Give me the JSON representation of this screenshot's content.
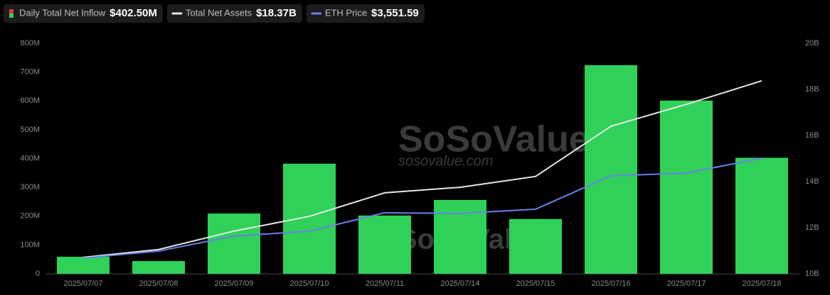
{
  "chart_data": {
    "type": "bar",
    "categories": [
      "2025/07/07",
      "2025/07/08",
      "2025/07/09",
      "2025/07/10",
      "2025/07/11",
      "2025/07/14",
      "2025/07/15",
      "2025/07/16",
      "2025/07/17",
      "2025/07/18"
    ],
    "series": [
      {
        "name": "Daily Total Net Inflow",
        "legend_value": "$402.50M",
        "type": "bar",
        "color": "#2fd158",
        "values": [
          59,
          44,
          209,
          382,
          202,
          256,
          190,
          724,
          601,
          402.5
        ]
      },
      {
        "name": "Total Net Assets",
        "legend_value": "$18.37B",
        "type": "line",
        "axis": "y2",
        "color": "#e6e6e6",
        "values": [
          10.71,
          11.05,
          11.85,
          12.49,
          13.51,
          13.75,
          14.22,
          16.4,
          17.35,
          18.37
        ]
      },
      {
        "name": "ETH Price",
        "legend_value": "$3,551.59",
        "type": "line",
        "axis": "y3",
        "color": "#6b80e6",
        "values": [
          2556,
          2626,
          2775,
          2825,
          3009,
          3002,
          3044,
          3377,
          3405,
          3551.59
        ]
      }
    ],
    "ylim": [
      0,
      800
    ],
    "yticks": [
      0,
      {
        "value": 100,
        "label": "100M"
      },
      {
        "value": 200,
        "label": "200M"
      },
      {
        "value": 300,
        "label": "300M"
      },
      {
        "value": 400,
        "label": "400M"
      },
      {
        "value": 500,
        "label": "500M"
      },
      {
        "value": 600,
        "label": "600M"
      },
      {
        "value": 700,
        "label": "700M"
      },
      {
        "value": 800,
        "label": "800M"
      }
    ],
    "y2lim": [
      10,
      20
    ],
    "y2ticks": [
      {
        "value": 10,
        "label": "10B"
      },
      {
        "value": 12,
        "label": "12B"
      },
      {
        "value": 14,
        "label": "14B"
      },
      {
        "value": 16,
        "label": "16B"
      },
      {
        "value": 18,
        "label": "18B"
      },
      {
        "value": 20,
        "label": "20B"
      }
    ],
    "y3lim": [
      2400,
      4700
    ],
    "grid": false,
    "watermark": "SoSoValue",
    "watermark_url": "sosovalue.com"
  }
}
